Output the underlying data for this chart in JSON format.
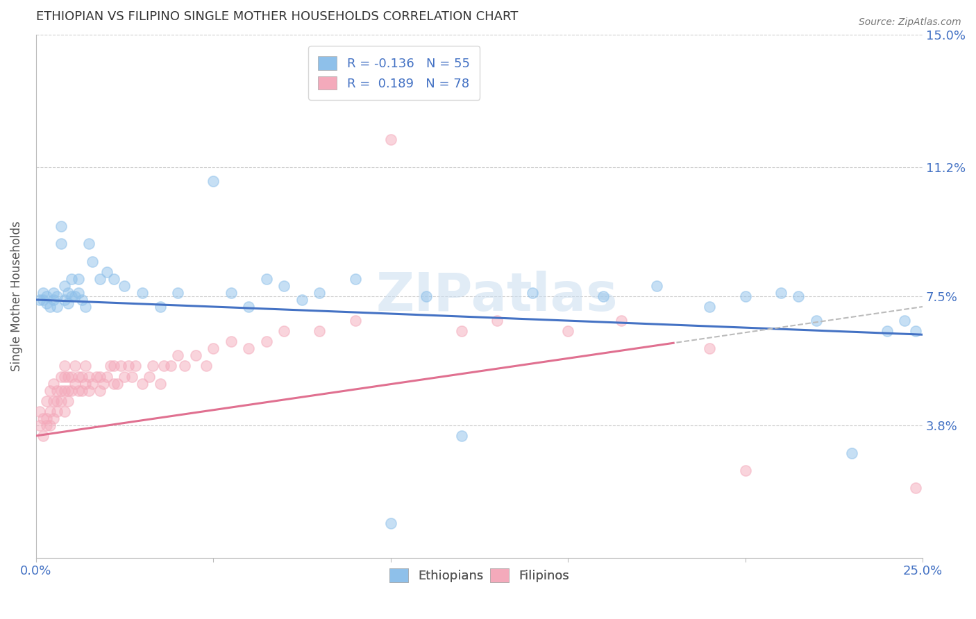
{
  "title": "ETHIOPIAN VS FILIPINO SINGLE MOTHER HOUSEHOLDS CORRELATION CHART",
  "source": "Source: ZipAtlas.com",
  "ylabel": "Single Mother Households",
  "xlim": [
    0.0,
    0.25
  ],
  "ylim": [
    0.0,
    0.15
  ],
  "xticks": [
    0.0,
    0.05,
    0.1,
    0.15,
    0.2,
    0.25
  ],
  "xtick_labels": [
    "0.0%",
    "",
    "",
    "",
    "",
    "25.0%"
  ],
  "ytick_labels": [
    "3.8%",
    "7.5%",
    "11.2%",
    "15.0%"
  ],
  "yticks": [
    0.038,
    0.075,
    0.112,
    0.15
  ],
  "ethiopian_color": "#8EC0EA",
  "filipino_color": "#F4AABB",
  "ethiopian_line_color": "#4472C4",
  "filipino_line_color": "#E07090",
  "grid_color": "#CCCCCC",
  "axis_label_color": "#4472C4",
  "legend_R_ethiopian": "-0.136",
  "legend_N_ethiopian": "55",
  "legend_R_filipino": "0.189",
  "legend_N_filipino": "78",
  "eth_trend_start_y": 0.074,
  "eth_trend_end_y": 0.064,
  "fil_trend_start_y": 0.035,
  "fil_trend_end_y": 0.072,
  "ethiopian_x": [
    0.001,
    0.002,
    0.002,
    0.003,
    0.003,
    0.004,
    0.005,
    0.005,
    0.006,
    0.006,
    0.007,
    0.007,
    0.008,
    0.008,
    0.009,
    0.009,
    0.01,
    0.01,
    0.011,
    0.012,
    0.012,
    0.013,
    0.014,
    0.015,
    0.016,
    0.018,
    0.02,
    0.022,
    0.025,
    0.03,
    0.035,
    0.04,
    0.05,
    0.055,
    0.06,
    0.065,
    0.07,
    0.075,
    0.08,
    0.09,
    0.1,
    0.11,
    0.12,
    0.14,
    0.16,
    0.175,
    0.19,
    0.2,
    0.21,
    0.215,
    0.22,
    0.23,
    0.24,
    0.245,
    0.248
  ],
  "ethiopian_y": [
    0.074,
    0.074,
    0.076,
    0.073,
    0.075,
    0.072,
    0.074,
    0.076,
    0.072,
    0.075,
    0.09,
    0.095,
    0.074,
    0.078,
    0.073,
    0.076,
    0.075,
    0.08,
    0.075,
    0.076,
    0.08,
    0.074,
    0.072,
    0.09,
    0.085,
    0.08,
    0.082,
    0.08,
    0.078,
    0.076,
    0.072,
    0.076,
    0.108,
    0.076,
    0.072,
    0.08,
    0.078,
    0.074,
    0.076,
    0.08,
    0.01,
    0.075,
    0.035,
    0.076,
    0.075,
    0.078,
    0.072,
    0.075,
    0.076,
    0.075,
    0.068,
    0.03,
    0.065,
    0.068,
    0.065
  ],
  "filipino_x": [
    0.001,
    0.001,
    0.002,
    0.002,
    0.003,
    0.003,
    0.003,
    0.004,
    0.004,
    0.004,
    0.005,
    0.005,
    0.005,
    0.006,
    0.006,
    0.006,
    0.007,
    0.007,
    0.007,
    0.008,
    0.008,
    0.008,
    0.008,
    0.009,
    0.009,
    0.009,
    0.01,
    0.01,
    0.011,
    0.011,
    0.012,
    0.012,
    0.013,
    0.013,
    0.014,
    0.014,
    0.015,
    0.015,
    0.016,
    0.017,
    0.018,
    0.018,
    0.019,
    0.02,
    0.021,
    0.022,
    0.022,
    0.023,
    0.024,
    0.025,
    0.026,
    0.027,
    0.028,
    0.03,
    0.032,
    0.033,
    0.035,
    0.036,
    0.038,
    0.04,
    0.042,
    0.045,
    0.048,
    0.05,
    0.055,
    0.06,
    0.065,
    0.07,
    0.08,
    0.09,
    0.1,
    0.12,
    0.13,
    0.15,
    0.165,
    0.19,
    0.2,
    0.248
  ],
  "filipino_y": [
    0.042,
    0.038,
    0.035,
    0.04,
    0.038,
    0.04,
    0.045,
    0.038,
    0.042,
    0.048,
    0.04,
    0.045,
    0.05,
    0.042,
    0.045,
    0.048,
    0.045,
    0.048,
    0.052,
    0.042,
    0.048,
    0.052,
    0.055,
    0.045,
    0.048,
    0.052,
    0.048,
    0.052,
    0.05,
    0.055,
    0.048,
    0.052,
    0.048,
    0.052,
    0.05,
    0.055,
    0.048,
    0.052,
    0.05,
    0.052,
    0.048,
    0.052,
    0.05,
    0.052,
    0.055,
    0.05,
    0.055,
    0.05,
    0.055,
    0.052,
    0.055,
    0.052,
    0.055,
    0.05,
    0.052,
    0.055,
    0.05,
    0.055,
    0.055,
    0.058,
    0.055,
    0.058,
    0.055,
    0.06,
    0.062,
    0.06,
    0.062,
    0.065,
    0.065,
    0.068,
    0.12,
    0.065,
    0.068,
    0.065,
    0.068,
    0.06,
    0.025,
    0.02
  ],
  "watermark": "ZIPatlas",
  "background_color": "#FFFFFF"
}
